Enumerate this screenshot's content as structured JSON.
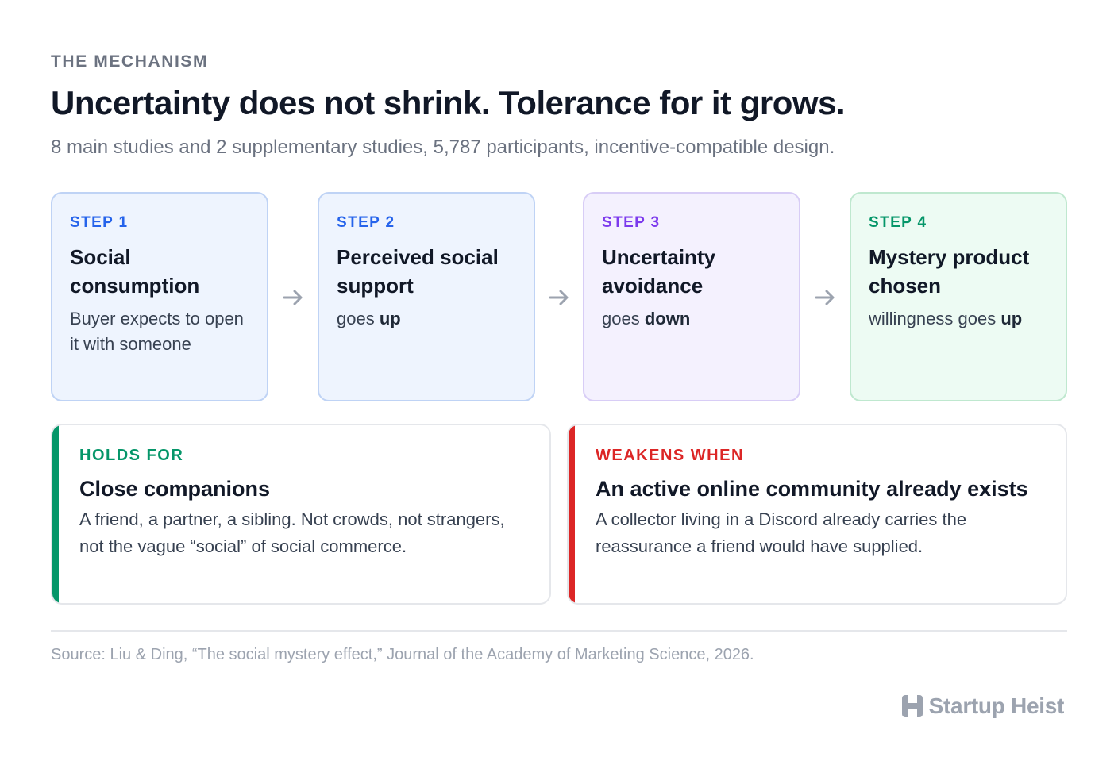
{
  "header": {
    "eyebrow": "THE MECHANISM",
    "title": "Uncertainty does not shrink. Tolerance for it grows.",
    "subtitle": "8 main studies and 2 supplementary studies, 5,787 participants, incentive-compatible design."
  },
  "steps": [
    {
      "label": "STEP 1",
      "head": "Social consumption",
      "body_pre": "Buyer expects to open it with someone",
      "body_strong": "",
      "color": "#2563eb"
    },
    {
      "label": "STEP 2",
      "head": "Perceived social support",
      "body_pre": "goes ",
      "body_strong": "up",
      "color": "#2563eb"
    },
    {
      "label": "STEP 3",
      "head": "Uncertainty avoidance",
      "body_pre": "goes ",
      "body_strong": "down",
      "color": "#7c3aed"
    },
    {
      "label": "STEP 4",
      "head": "Mystery product chosen",
      "body_pre": "willingness goes ",
      "body_strong": "up",
      "color": "#059669"
    }
  ],
  "conditions": {
    "holds": {
      "label": "HOLDS FOR",
      "head": "Close companions",
      "body": "A friend, a partner, a sibling. Not crowds, not strangers, not the vague “social” of social commerce.",
      "color": "#059669"
    },
    "weakens": {
      "label": "WEAKENS WHEN",
      "head": "An active online community already exists",
      "body": "A collector living in a Discord already carries the reassurance a friend would have supplied.",
      "color": "#dc2626"
    }
  },
  "footer": {
    "source": "Source: Liu & Ding, “The social mystery effect,” Journal of the Academy of Marketing Science, 2026.",
    "brand": "Startup Heist",
    "brand_icon": "h-logo-icon"
  }
}
